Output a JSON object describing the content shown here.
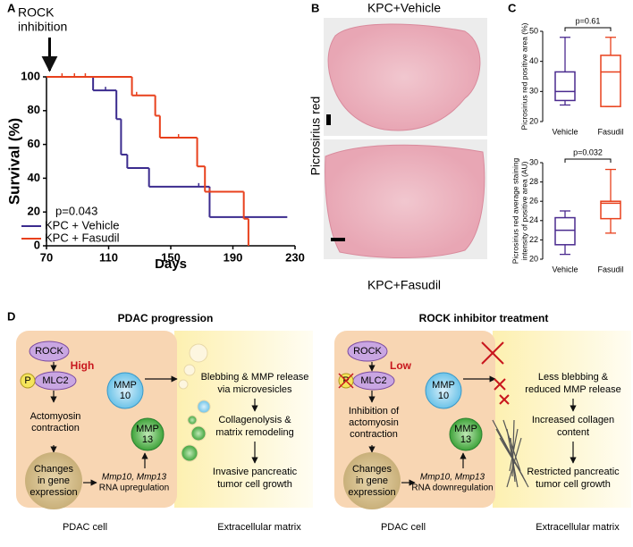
{
  "panel_labels": [
    "A",
    "B",
    "C",
    "D"
  ],
  "chart_data": [
    {
      "type": "survival",
      "xlabel": "Days",
      "ylabel": "Survival (%)",
      "xlim": [
        70,
        230
      ],
      "xticks": [
        70,
        110,
        150,
        190,
        230
      ],
      "ylim": [
        0,
        100
      ],
      "yticks": [
        0,
        20,
        40,
        60,
        80,
        100
      ],
      "annotation": {
        "text": [
          "ROCK",
          "inhibition"
        ],
        "x": 72
      },
      "p_value": "p=0.043",
      "series": [
        {
          "name": "KPC + Vehicle",
          "color": "#3b2b8e",
          "x": [
            70,
            100,
            115,
            118,
            122,
            136,
            175,
            225
          ],
          "values": [
            100,
            92,
            75,
            54,
            46,
            35,
            17,
            17
          ],
          "censored": [
            108,
            168
          ]
        },
        {
          "name": "KPC + Fasudil",
          "color": "#e8401c",
          "x": [
            70,
            125,
            140,
            143,
            167,
            172,
            197,
            200
          ],
          "values": [
            100,
            89,
            77,
            64,
            47,
            32,
            16,
            0
          ],
          "censored": [
            80,
            88,
            95,
            128,
            155,
            175
          ]
        }
      ]
    },
    {
      "type": "box",
      "ylabel": [
        "Picrosirius red positive area (%)"
      ],
      "ylim": [
        20,
        50
      ],
      "yticks": [
        20,
        30,
        40,
        50
      ],
      "categories": [
        "Vehicle",
        "Fasudil"
      ],
      "colors": [
        "#4a2a8e",
        "#e8401c"
      ],
      "p_value": "p=0.61",
      "boxes": [
        {
          "min": 25.5,
          "q1": 27,
          "median": 30,
          "q3": 36.5,
          "max": 48
        },
        {
          "min": 25,
          "q1": 25,
          "median": 36.5,
          "q3": 42,
          "max": 48
        }
      ]
    },
    {
      "type": "box",
      "ylabel": [
        "Picrosirius red average staining",
        "intensity of positive area (AU)"
      ],
      "ylim": [
        20,
        30
      ],
      "yticks": [
        20,
        22,
        24,
        26,
        28,
        30
      ],
      "categories": [
        "Vehicle",
        "Fasudil"
      ],
      "colors": [
        "#4a2a8e",
        "#e8401c"
      ],
      "p_value": "p=0.032",
      "boxes": [
        {
          "min": 20.5,
          "q1": 21.5,
          "median": 23,
          "q3": 24.3,
          "max": 25
        },
        {
          "min": 22.7,
          "q1": 24.2,
          "median": 25.8,
          "q3": 26,
          "max": 29.3
        }
      ]
    }
  ],
  "image_panel": {
    "top_label": "KPC+Vehicle",
    "bottom_label": "KPC+Fasudil",
    "stain_label": "Picrosirius red"
  },
  "diagram": {
    "left": {
      "title": "PDAC progression",
      "rock": "ROCK",
      "level": "High",
      "p": "P",
      "mlc2": "MLC2",
      "step1": [
        "Actomyosin",
        "contraction"
      ],
      "nucleus": [
        "Changes",
        "in gene",
        "expression"
      ],
      "rna": [
        "Mmp10, Mmp13",
        "RNA upregulation"
      ],
      "mmp10": [
        "MMP",
        "10"
      ],
      "mmp13": [
        "MMP",
        "13"
      ],
      "ecm1": [
        "Blebbing & MMP release",
        "via microvesicles"
      ],
      "ecm2": [
        "Collagenolysis &",
        "matrix remodeling"
      ],
      "ecm3": [
        "Invasive pancreatic",
        "tumor cell growth"
      ],
      "cell": "PDAC cell",
      "matrix": "Extracellular matrix"
    },
    "right": {
      "title": "ROCK inhibitor treatment",
      "rock": "ROCK",
      "level": "Low",
      "p": "P",
      "mlc2": "MLC2",
      "step1": [
        "Inhibition of",
        "actomyosin",
        "contraction"
      ],
      "nucleus": [
        "Changes",
        "in gene",
        "expression"
      ],
      "rna": [
        "Mmp10, Mmp13",
        "RNA downregulation"
      ],
      "mmp10": [
        "MMP",
        "10"
      ],
      "mmp13": [
        "MMP",
        "13"
      ],
      "ecm1": [
        "Less blebbing &",
        "reduced MMP release"
      ],
      "ecm2": [
        "Increased collagen",
        "content"
      ],
      "ecm3": [
        "Restricted pancreatic",
        "tumor cell growth"
      ],
      "cell": "PDAC cell",
      "matrix": "Extracellular matrix"
    }
  }
}
